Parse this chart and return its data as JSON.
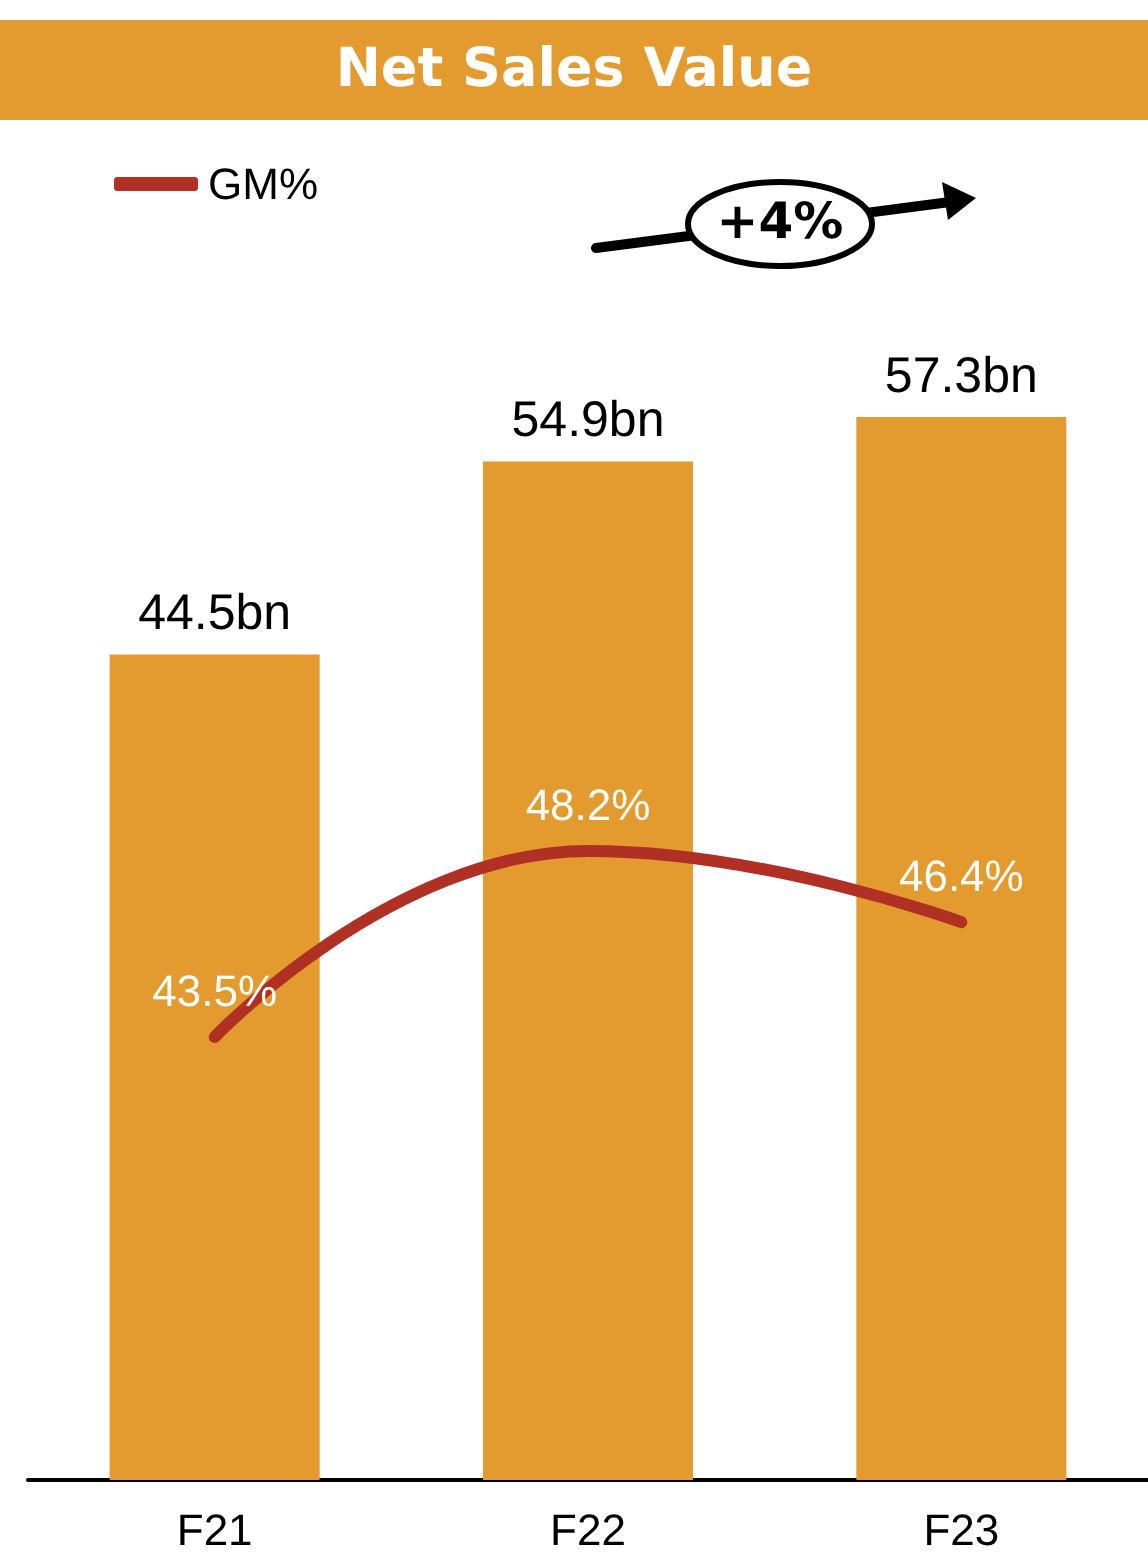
{
  "chart_data": {
    "type": "bar",
    "title": "Net Sales Value",
    "categories": [
      "F21",
      "F22",
      "F23"
    ],
    "series": [
      {
        "color": "#e39a2f",
        "values": [
          44.5,
          54.9,
          57.3
        ],
        "value_labels": [
          "44.5bn",
          "54.9bn",
          "57.3bn"
        ]
      },
      {
        "type": "line",
        "name": "GM%",
        "axis": "y2",
        "color": "#b03024",
        "values": [
          43.5,
          48.2,
          46.4
        ],
        "value_labels": [
          "43.5%",
          "48.2%",
          "46.4%"
        ]
      }
    ],
    "tick_labels": "x",
    "grid": false,
    "legend": "top left",
    "marker": "none",
    "annotations": [
      "+4%"
    ]
  }
}
